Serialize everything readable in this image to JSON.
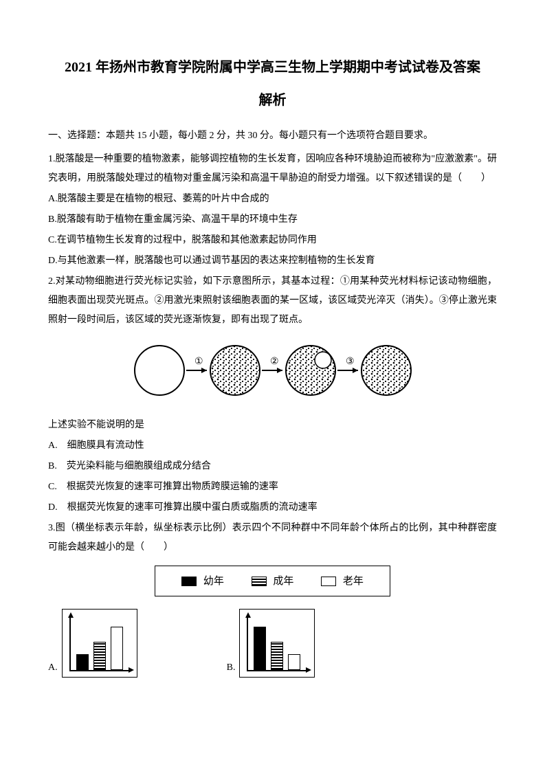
{
  "title_line1": "2021 年扬州市教育学院附属中学高三生物上学期期中考试试卷及答案",
  "title_line2": "解析",
  "section1_header": "一、选择题：本题共 15 小题，每小题 2 分，共 30 分。每小题只有一个选项符合题目要求。",
  "q1": {
    "stem": "1.脱落酸是一种重要的植物激素，能够调控植物的生长发育，因响应各种环境胁迫而被称为\"应激激素\"。研究表明，用脱落酸处理过的植物对重金属污染和高温干旱胁迫的耐受力增强。以下叙述错误的是（　　）",
    "A": "A.脱落酸主要是在植物的根冠、萎蔫的叶片中合成的",
    "B": "B.脱落酸有助于植物在重金属污染、高温干旱的环境中生存",
    "C": "C.在调节植物生长发育的过程中，脱落酸和其他激素起协同作用",
    "D": "D.与其他激素一样，脱落酸也可以通过调节基因的表达来控制植物的生长发育"
  },
  "q2": {
    "stem": "2.对某动物细胞进行荧光标记实验，如下示意图所示，其基本过程：①用某种荧光材料标记该动物细胞，细胞表面出现荧光斑点。②用激光束照射该细胞表面的某一区域，该区域荧光淬灭（消失）。③停止激光束照射一段时间后，该区域的荧光逐渐恢复，即有出现了斑点。",
    "after_diagram": "上述实验不能说明的是",
    "A": "A.　细胞膜具有流动性",
    "B": "B.　荧光染料能与细胞膜组成成分结合",
    "C": "C.　根据荧光恢复的速率可推算出物质跨膜运输的速率",
    "D": "D.　根据荧光恢复的速率可推算出膜中蛋白质或脂质的流动速率",
    "diagram": {
      "type": "sequence-circles",
      "circle_radius": 38,
      "border_color": "#000000",
      "labels": [
        "①",
        "②",
        "③"
      ],
      "circles": [
        {
          "fill": "empty"
        },
        {
          "fill": "dots"
        },
        {
          "fill": "dots_with_hole"
        },
        {
          "fill": "dots"
        }
      ]
    }
  },
  "q3": {
    "stem": "3.图（横坐标表示年龄，纵坐标表示比例）表示四个不同种群中不同年龄个体所占的比例，其中种群密度可能会越来越小的是（　　）",
    "legend": {
      "items": [
        {
          "label": "幼年",
          "style": "solid"
        },
        {
          "label": "成年",
          "style": "hatched"
        },
        {
          "label": "老年",
          "style": "empty"
        }
      ]
    },
    "chartA": {
      "label": "A.",
      "type": "bar",
      "bars": [
        {
          "style": "solid",
          "height_pct": 30
        },
        {
          "style": "hatched",
          "height_pct": 55
        },
        {
          "style": "empty",
          "height_pct": 85
        }
      ],
      "border_color": "#000000"
    },
    "chartB": {
      "label": "B.",
      "type": "bar",
      "bars": [
        {
          "style": "solid",
          "height_pct": 85
        },
        {
          "style": "hatched",
          "height_pct": 55
        },
        {
          "style": "empty",
          "height_pct": 30
        }
      ],
      "border_color": "#000000"
    }
  }
}
